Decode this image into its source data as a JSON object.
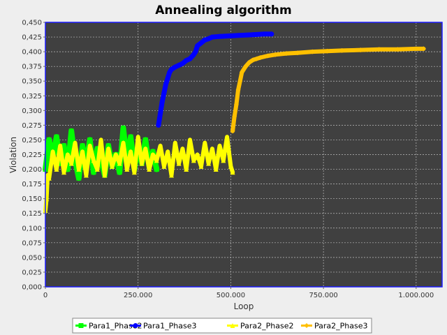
{
  "chart_data": {
    "type": "line",
    "title": "Annealing algorithm",
    "xlabel": "Loop",
    "ylabel": "Violation",
    "xlim": [
      0,
      1070000
    ],
    "ylim": [
      0,
      0.45
    ],
    "x_ticks": [
      {
        "value": 0,
        "label": "0"
      },
      {
        "value": 250000,
        "label": "250.000"
      },
      {
        "value": 500000,
        "label": "500.000"
      },
      {
        "value": 750000,
        "label": "750.000"
      },
      {
        "value": 1000000,
        "label": "1.000.000"
      }
    ],
    "y_ticks": [
      {
        "value": 0,
        "label": "0,000"
      },
      {
        "value": 0.025,
        "label": "0,025"
      },
      {
        "value": 0.05,
        "label": "0,050"
      },
      {
        "value": 0.075,
        "label": "0,075"
      },
      {
        "value": 0.1,
        "label": "0,100"
      },
      {
        "value": 0.125,
        "label": "0,125"
      },
      {
        "value": 0.15,
        "label": "0,150"
      },
      {
        "value": 0.175,
        "label": "0,175"
      },
      {
        "value": 0.2,
        "label": "0,200"
      },
      {
        "value": 0.225,
        "label": "0,225"
      },
      {
        "value": 0.25,
        "label": "0,250"
      },
      {
        "value": 0.275,
        "label": "0,275"
      },
      {
        "value": 0.3,
        "label": "0,300"
      },
      {
        "value": 0.325,
        "label": "0,325"
      },
      {
        "value": 0.35,
        "label": "0,350"
      },
      {
        "value": 0.375,
        "label": "0,375"
      },
      {
        "value": 0.4,
        "label": "0,400"
      },
      {
        "value": 0.425,
        "label": "0,425"
      },
      {
        "value": 0.45,
        "label": "0,450"
      }
    ],
    "grid": true,
    "legend_position": "bottom",
    "plot_background": "#404040",
    "plot_border_color": "#1a1aff",
    "series": [
      {
        "name": "Para1_Phase2",
        "color": "#00ff00",
        "marker": "square",
        "x": [
          0,
          10000,
          20000,
          30000,
          40000,
          50000,
          60000,
          70000,
          80000,
          90000,
          100000,
          110000,
          120000,
          130000,
          140000,
          150000,
          160000,
          170000,
          180000,
          190000,
          200000,
          210000,
          220000,
          230000,
          240000,
          250000,
          260000,
          270000,
          280000,
          290000,
          300000
        ],
        "y": [
          0.2,
          0.25,
          0.22,
          0.255,
          0.21,
          0.24,
          0.2,
          0.265,
          0.215,
          0.185,
          0.24,
          0.21,
          0.25,
          0.195,
          0.235,
          0.215,
          0.19,
          0.24,
          0.205,
          0.225,
          0.195,
          0.27,
          0.215,
          0.255,
          0.2,
          0.24,
          0.21,
          0.25,
          0.205,
          0.23,
          0.2
        ]
      },
      {
        "name": "Para1_Phase3",
        "color": "#0000ff",
        "marker": "circle",
        "x": [
          305000,
          310000,
          315000,
          320000,
          325000,
          330000,
          335000,
          340000,
          345000,
          350000,
          360000,
          370000,
          380000,
          390000,
          400000,
          405000,
          410000,
          420000,
          430000,
          440000,
          450000,
          470000,
          500000,
          530000,
          560000,
          590000,
          610000
        ],
        "y": [
          0.275,
          0.295,
          0.315,
          0.33,
          0.345,
          0.355,
          0.365,
          0.37,
          0.372,
          0.374,
          0.377,
          0.38,
          0.385,
          0.388,
          0.395,
          0.4,
          0.41,
          0.415,
          0.42,
          0.422,
          0.425,
          0.426,
          0.427,
          0.428,
          0.429,
          0.43,
          0.43
        ]
      },
      {
        "name": "Para2_Phase2",
        "color": "#ffff00",
        "marker": "triangle",
        "x": [
          0,
          3000,
          6000,
          10000,
          20000,
          30000,
          40000,
          50000,
          60000,
          70000,
          80000,
          90000,
          100000,
          110000,
          120000,
          130000,
          140000,
          150000,
          160000,
          170000,
          180000,
          190000,
          200000,
          210000,
          220000,
          230000,
          240000,
          250000,
          260000,
          270000,
          280000,
          290000,
          300000,
          310000,
          320000,
          330000,
          340000,
          350000,
          360000,
          370000,
          380000,
          390000,
          400000,
          410000,
          420000,
          430000,
          440000,
          450000,
          460000,
          470000,
          480000,
          490000,
          500000,
          505000
        ],
        "y": [
          0.13,
          0.15,
          0.19,
          0.185,
          0.23,
          0.2,
          0.24,
          0.195,
          0.225,
          0.21,
          0.245,
          0.2,
          0.23,
          0.19,
          0.24,
          0.215,
          0.2,
          0.25,
          0.19,
          0.235,
          0.205,
          0.225,
          0.21,
          0.245,
          0.2,
          0.23,
          0.195,
          0.255,
          0.21,
          0.235,
          0.2,
          0.225,
          0.215,
          0.24,
          0.205,
          0.23,
          0.19,
          0.245,
          0.21,
          0.235,
          0.2,
          0.25,
          0.215,
          0.225,
          0.205,
          0.245,
          0.21,
          0.235,
          0.2,
          0.24,
          0.215,
          0.255,
          0.205,
          0.195
        ]
      },
      {
        "name": "Para2_Phase3",
        "color": "#ffc000",
        "marker": "diamond",
        "x": [
          505000,
          510000,
          515000,
          520000,
          525000,
          530000,
          540000,
          550000,
          560000,
          570000,
          580000,
          600000,
          620000,
          650000,
          680000,
          720000,
          760000,
          800000,
          850000,
          900000,
          950000,
          1000000,
          1020000
        ],
        "y": [
          0.265,
          0.29,
          0.31,
          0.335,
          0.35,
          0.365,
          0.375,
          0.382,
          0.386,
          0.388,
          0.39,
          0.393,
          0.395,
          0.397,
          0.398,
          0.4,
          0.401,
          0.402,
          0.403,
          0.404,
          0.404,
          0.405,
          0.405
        ]
      }
    ]
  }
}
